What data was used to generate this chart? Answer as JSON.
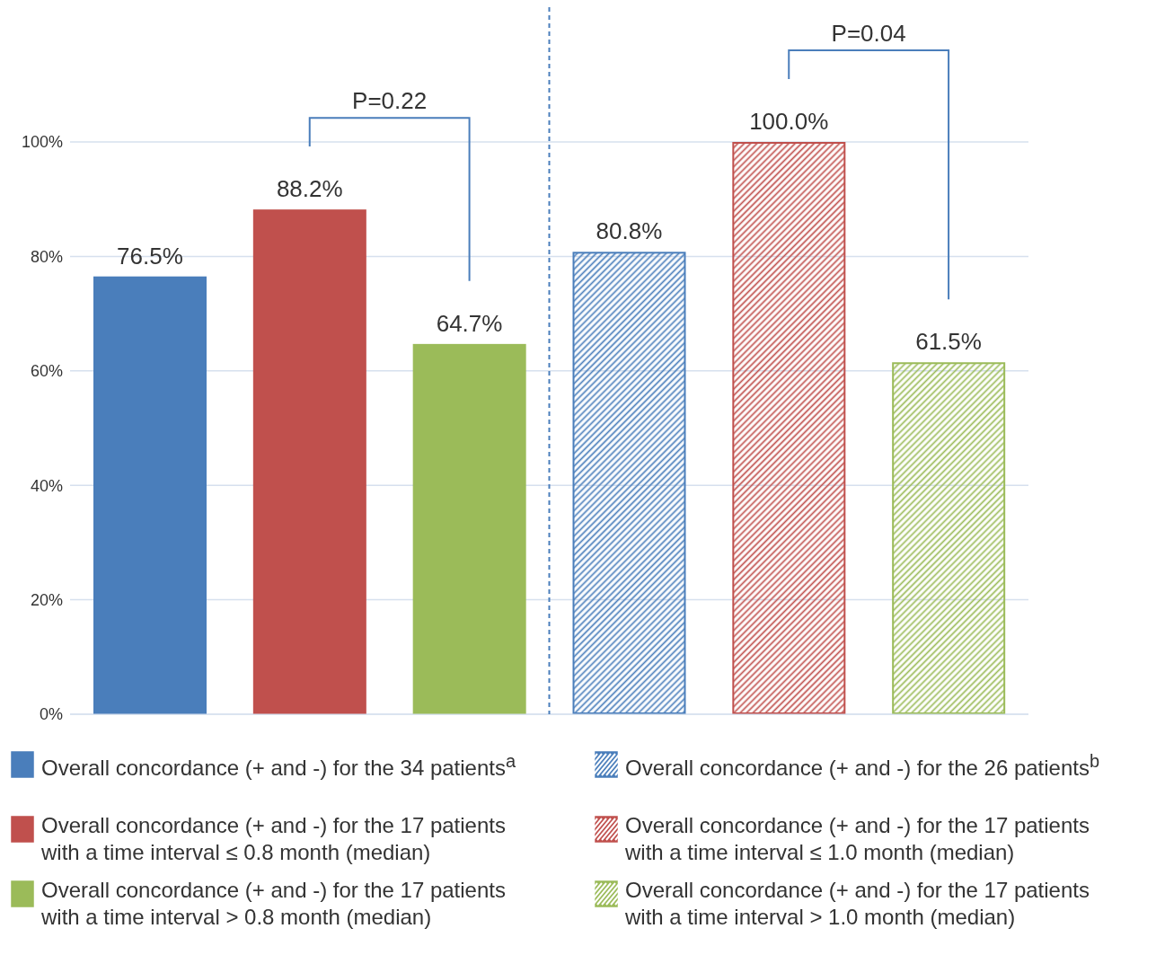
{
  "chart_data": {
    "type": "bar",
    "categories": [
      null,
      null,
      null,
      null,
      null,
      null
    ],
    "series": [
      {
        "name": "Overall concordance (+ and -) for the 34 patients$^{a}$",
        "color": "#4a7ebb",
        "values": [
          76.5,
          null,
          null,
          null,
          null,
          null
        ],
        "value_labels": [
          "76.5%",
          null,
          null,
          null,
          null,
          null
        ]
      },
      {
        "name": "Overall concordance (+ and -) for the 17 patients with a time interval ≤ 0.8 month (median)",
        "color": "#c0504d",
        "values": [
          null,
          88.2,
          null,
          null,
          null,
          null
        ],
        "value_labels": [
          null,
          "88.2%",
          null,
          null,
          null,
          null
        ]
      },
      {
        "name": "Overall concordance (+ and -) for the 17 patients with a time interval > 0.8 month (median)",
        "color": "#9bbb59",
        "values": [
          null,
          null,
          64.7,
          null,
          null,
          null
        ],
        "value_labels": [
          null,
          null,
          "64.7%",
          null,
          null,
          null
        ]
      },
      {
        "name": "Overall concordance (+ and -) for the 26 patients$^{b}$",
        "color": "#4a7ebb",
        "values": [
          null,
          null,
          null,
          80.8,
          null,
          null
        ],
        "value_labels": [
          null,
          null,
          null,
          "80.8%",
          null,
          null
        ]
      },
      {
        "name": "Overall concordance (+ and -) for the 17 patients with a time interval ≤ 1.0 month (median)",
        "color": "#c0504d",
        "values": [
          null,
          null,
          null,
          null,
          100.0,
          null
        ],
        "value_labels": [
          null,
          null,
          null,
          null,
          "100.0%",
          null
        ]
      },
      {
        "name": "Overall concordance (+ and -) for the 17 patients with a time interval > 1.0 month (median)",
        "color": "#9bbb59",
        "values": [
          null,
          null,
          null,
          null,
          null,
          61.5
        ],
        "value_labels": [
          null,
          null,
          null,
          null,
          null,
          "61.5%"
        ]
      }
    ],
    "ylim": [
      0,
      100
    ],
    "yticks": [
      {
        "value": 0,
        "label": "0%"
      },
      {
        "value": 20,
        "label": "20%"
      },
      {
        "value": 40,
        "label": "40%"
      },
      {
        "value": 60,
        "label": "60%"
      },
      {
        "value": 80,
        "label": "80%"
      },
      {
        "value": 100,
        "label": "100%"
      }
    ],
    "grid": "y",
    "legend": "bottom",
    "annotations": [
      "P=0.22",
      "P=0.04"
    ]
  }
}
